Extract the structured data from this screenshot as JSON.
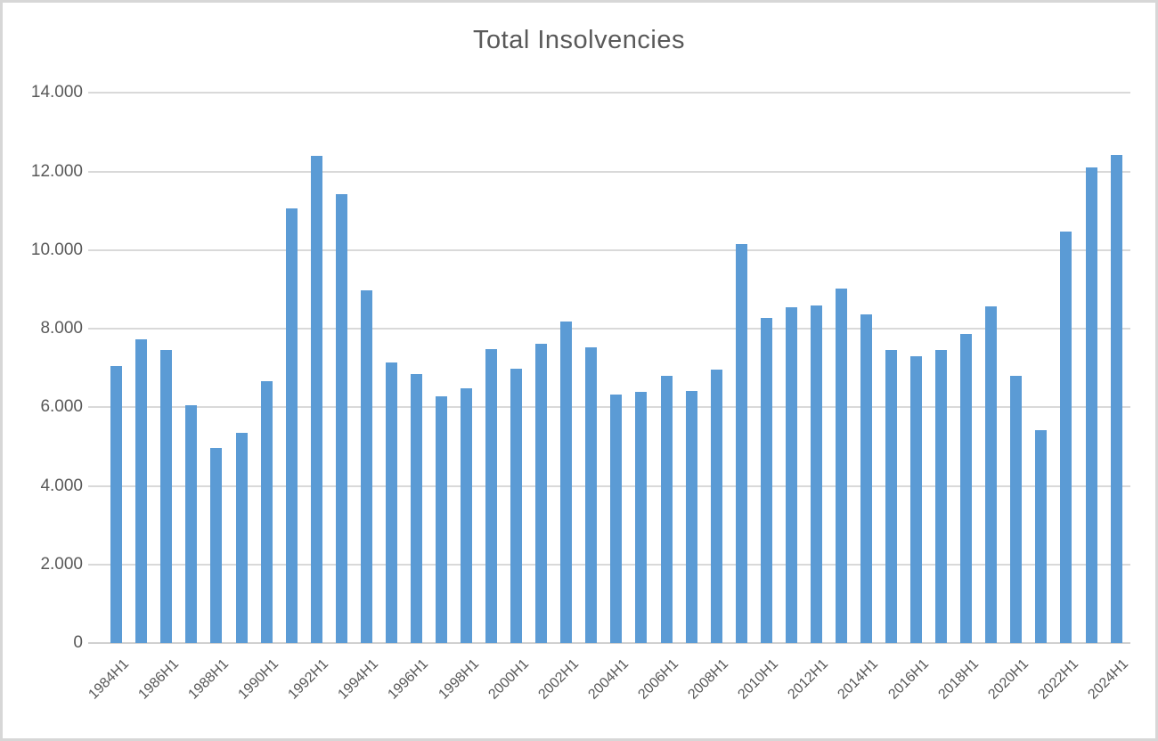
{
  "chart_data": {
    "type": "bar",
    "title": "Total Insolvencies",
    "categories": [
      "1984H1",
      "1985H1",
      "1986H1",
      "1987H1",
      "1988H1",
      "1989H1",
      "1990H1",
      "1991H1",
      "1992H1",
      "1993H1",
      "1994H1",
      "1995H1",
      "1996H1",
      "1997H1",
      "1998H1",
      "1999H1",
      "2000H1",
      "2001H1",
      "2002H1",
      "2003H1",
      "2004H1",
      "2005H1",
      "2006H1",
      "2007H1",
      "2008H1",
      "2009H1",
      "2010H1",
      "2011H1",
      "2012H1",
      "2013H1",
      "2014H1",
      "2015H1",
      "2016H1",
      "2017H1",
      "2018H1",
      "2019H1",
      "2020H1",
      "2021H1",
      "2022H1",
      "2023H1",
      "2024H1"
    ],
    "values": [
      7050,
      7730,
      7450,
      6050,
      4970,
      5360,
      6670,
      11050,
      12400,
      11420,
      8970,
      7150,
      6840,
      6270,
      6490,
      7470,
      6990,
      7620,
      8180,
      7530,
      6330,
      6400,
      6790,
      6420,
      6950,
      10160,
      8280,
      8540,
      8580,
      9030,
      8370,
      7450,
      7290,
      7460,
      7860,
      8570,
      6800,
      5420,
      10480,
      12100,
      12410
    ],
    "x_tick_labels": [
      "1984H1",
      "1986H1",
      "1988H1",
      "1990H1",
      "1992H1",
      "1994H1",
      "1996H1",
      "1998H1",
      "2000H1",
      "2002H1",
      "2004H1",
      "2006H1",
      "2008H1",
      "2010H1",
      "2012H1",
      "2014H1",
      "2016H1",
      "2018H1",
      "2020H1",
      "2022H1",
      "2024H1"
    ],
    "y_tick_labels": [
      "0",
      "2.000",
      "4.000",
      "6.000",
      "8.000",
      "10.000",
      "12.000",
      "14.000"
    ],
    "y_tick_values": [
      0,
      2000,
      4000,
      6000,
      8000,
      10000,
      12000,
      14000
    ],
    "ylim": [
      0,
      14000
    ],
    "grid": "horizontal",
    "legend": "none",
    "colors": {
      "bar": "#5B9BD5",
      "gridline": "#D9D9D9",
      "axis_line": "#D0D0D0",
      "text": "#595959",
      "background": "#FFFFFF",
      "frame_border": "#D7D7D7"
    }
  }
}
